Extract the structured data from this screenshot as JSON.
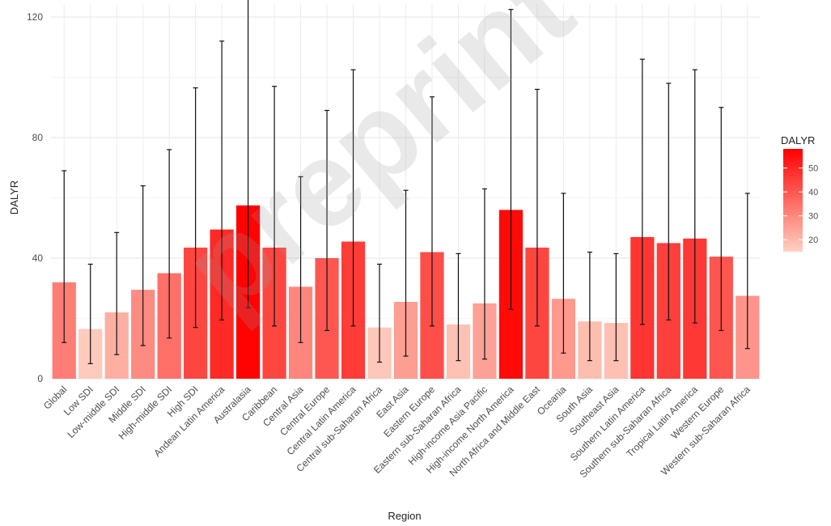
{
  "chart_data": {
    "type": "bar",
    "xlabel": "Region",
    "ylabel": "DALYR",
    "ylim": [
      0,
      125
    ],
    "yticks": [
      0,
      40,
      80,
      120
    ],
    "grid": true,
    "legend": {
      "title": "DALYR",
      "position": "right",
      "ticks": [
        20,
        30,
        40,
        50
      ],
      "range": [
        15,
        58
      ],
      "color_low": "#fdd1c2",
      "color_high": "#ff0000"
    },
    "categories": [
      "Global",
      "Low SDI",
      "Low-middle SDI",
      "Middle SDI",
      "High-middle SDI",
      "High SDI",
      "Andean Latin America",
      "Australasia",
      "Caribbean",
      "Central Asia",
      "Central Europe",
      "Central Latin America",
      "Central sub-Saharan Africa",
      "East Asia",
      "Eastern Europe",
      "Eastern sub-Saharan Africa",
      "High-income Asia Pacific",
      "High-income North America",
      "North Africa and Middle East",
      "Oceania",
      "South Asia",
      "Southeast Asia",
      "Southern Latin America",
      "Southern sub-Saharan Africa",
      "Tropical Latin America",
      "Western Europe",
      "Western sub-Saharan Africa"
    ],
    "values": [
      32,
      16.5,
      22,
      29.5,
      35,
      43.5,
      49.5,
      57.5,
      43.5,
      30.5,
      40,
      45.5,
      17,
      25.5,
      42,
      18,
      25,
      56,
      43.5,
      26.5,
      19,
      18.5,
      47,
      45,
      46.5,
      40.5,
      27.5
    ],
    "lower": [
      12,
      5,
      8,
      11,
      13.5,
      17,
      19.5,
      23.5,
      17.5,
      12,
      16,
      17.5,
      5.5,
      7.5,
      17.5,
      6,
      6.5,
      23,
      17.5,
      8.5,
      6,
      6,
      18,
      19.5,
      18.5,
      16,
      10
    ],
    "upper": [
      69,
      38,
      48.5,
      64,
      76,
      96.5,
      112,
      127,
      97,
      67,
      89,
      102.5,
      38,
      62.5,
      93.5,
      41.5,
      63,
      122.5,
      96,
      61.5,
      42,
      41.5,
      106,
      98,
      102.5,
      90,
      61.5
    ]
  },
  "watermark": {
    "text": "preprint"
  }
}
